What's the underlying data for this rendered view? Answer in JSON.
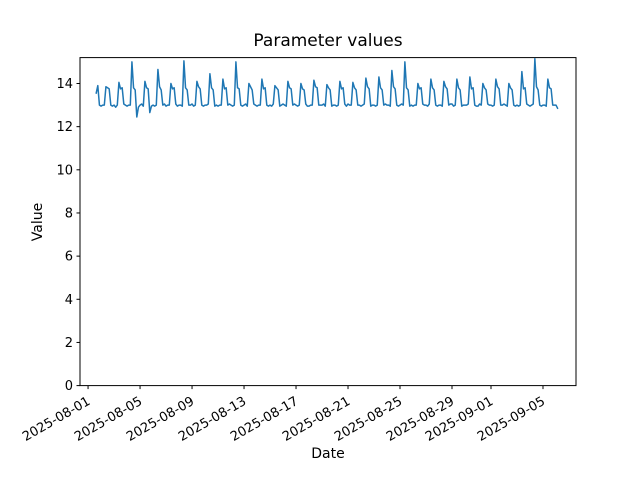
{
  "figure": {
    "title": "Parameter values",
    "xlabel": "Date",
    "ylabel": "Value"
  },
  "chart_data": {
    "type": "line",
    "title": "Parameter values",
    "xlabel": "Date",
    "ylabel": "Value",
    "grid": false,
    "legend": false,
    "background_color": "#ffffff",
    "axes_edge_color": "#000000",
    "line_color": "#1f77b4",
    "ylim": [
      0,
      15.2
    ],
    "y_ticks": [
      0,
      2,
      4,
      6,
      8,
      10,
      12,
      14
    ],
    "x_epoch": "2025-08-01",
    "xlim_day_offsets": [
      -0.62,
      37.54
    ],
    "x_tick_labels": [
      "2025-08-01",
      "2025-08-05",
      "2025-08-09",
      "2025-08-13",
      "2025-08-17",
      "2025-08-21",
      "2025-08-25",
      "2025-08-29",
      "2025-09-01",
      "2025-09-05"
    ],
    "x_tick_day_offsets": [
      0,
      4,
      8,
      12,
      16,
      20,
      24,
      28,
      31,
      35
    ],
    "x_tick_rotation_deg": 30,
    "series": [
      {
        "color": "#1f77b4",
        "x_start_day_offset": 0.625,
        "x_interval_days": 0.125,
        "values": [
          13.55,
          13.9,
          13.0,
          12.95,
          13.0,
          13.0,
          13.85,
          13.8,
          13.75,
          13.0,
          12.95,
          13.0,
          12.9,
          13.0,
          14.05,
          13.75,
          13.8,
          13.05,
          13.0,
          12.95,
          13.0,
          13.0,
          15.0,
          13.8,
          13.7,
          12.45,
          12.9,
          13.0,
          13.05,
          12.95,
          14.1,
          13.8,
          13.75,
          12.65,
          12.95,
          13.0,
          12.95,
          13.0,
          14.65,
          13.85,
          13.7,
          13.0,
          13.05,
          12.95,
          13.0,
          13.0,
          14.0,
          13.75,
          13.8,
          13.05,
          12.95,
          13.0,
          13.0,
          12.95,
          15.05,
          13.8,
          13.7,
          13.0,
          13.0,
          13.05,
          12.95,
          13.0,
          14.1,
          13.85,
          13.75,
          13.0,
          12.95,
          13.0,
          13.0,
          13.05,
          14.45,
          13.8,
          13.7,
          12.95,
          13.0,
          12.95,
          13.0,
          13.0,
          14.2,
          13.75,
          13.8,
          13.0,
          13.05,
          13.0,
          12.95,
          13.0,
          15.0,
          13.8,
          13.75,
          13.0,
          12.95,
          13.0,
          13.05,
          12.95,
          14.0,
          13.85,
          13.7,
          13.05,
          13.0,
          12.95,
          13.0,
          13.0,
          14.2,
          13.75,
          13.8,
          13.0,
          12.95,
          13.0,
          12.95,
          13.05,
          13.9,
          13.8,
          13.7,
          12.95,
          13.0,
          13.05,
          13.0,
          12.95,
          14.1,
          13.8,
          13.75,
          13.0,
          13.05,
          13.0,
          12.95,
          13.0,
          14.0,
          13.75,
          13.7,
          13.05,
          12.95,
          12.95,
          13.0,
          13.0,
          14.15,
          13.85,
          13.8,
          13.0,
          13.0,
          13.0,
          13.05,
          12.95,
          13.95,
          13.8,
          13.7,
          12.95,
          13.0,
          13.0,
          12.95,
          13.0,
          14.1,
          13.75,
          13.8,
          13.05,
          12.95,
          13.05,
          13.0,
          13.0,
          14.05,
          13.8,
          13.7,
          13.0,
          13.0,
          12.95,
          13.0,
          13.05,
          14.25,
          13.85,
          13.75,
          12.95,
          13.0,
          13.0,
          12.95,
          13.0,
          14.3,
          13.8,
          13.7,
          13.0,
          13.05,
          13.0,
          13.0,
          12.95,
          14.6,
          13.85,
          13.75,
          13.0,
          12.95,
          13.0,
          13.05,
          13.0,
          15.0,
          13.8,
          13.7,
          12.95,
          13.0,
          12.95,
          13.0,
          13.0,
          14.0,
          13.75,
          13.8,
          13.05,
          13.0,
          13.0,
          12.95,
          13.05,
          14.2,
          13.8,
          13.7,
          13.0,
          12.95,
          13.0,
          13.0,
          12.95,
          14.1,
          13.85,
          13.75,
          13.0,
          13.05,
          13.05,
          12.95,
          13.0,
          14.2,
          13.8,
          13.7,
          12.95,
          13.0,
          13.0,
          13.0,
          13.05,
          14.3,
          13.75,
          13.8,
          13.0,
          12.95,
          12.95,
          13.05,
          13.0,
          14.0,
          13.8,
          13.7,
          13.05,
          13.0,
          13.0,
          12.95,
          13.0,
          14.2,
          13.85,
          13.75,
          13.0,
          13.0,
          13.05,
          13.0,
          12.95,
          14.0,
          13.8,
          13.7,
          13.0,
          12.95,
          13.0,
          12.95,
          13.0,
          14.55,
          13.75,
          13.8,
          13.05,
          13.0,
          12.95,
          13.0,
          13.05,
          15.15,
          13.85,
          13.7,
          13.0,
          12.95,
          13.0,
          13.0,
          12.95,
          14.2,
          13.8,
          13.75,
          13.0,
          13.0,
          13.0,
          12.85
        ]
      }
    ]
  }
}
